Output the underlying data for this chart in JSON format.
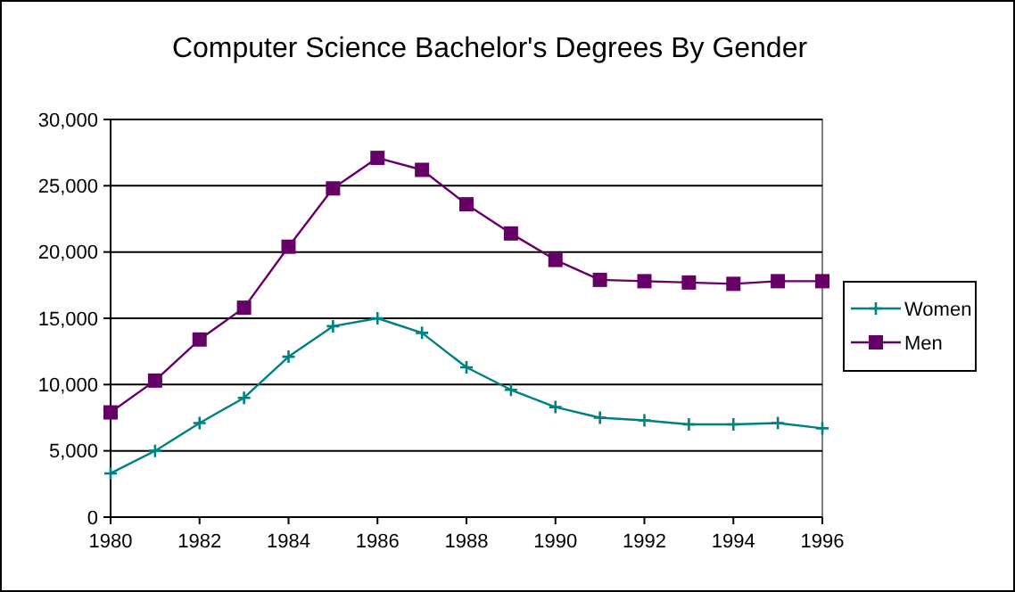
{
  "chart_data": {
    "type": "line",
    "title": "Computer Science Bachelor's Degrees By Gender",
    "x": [
      1980,
      1981,
      1982,
      1983,
      1984,
      1985,
      1986,
      1987,
      1988,
      1989,
      1990,
      1991,
      1992,
      1993,
      1994,
      1995,
      1996
    ],
    "xlim": [
      1980,
      1996
    ],
    "xticks": [
      1980,
      1982,
      1984,
      1986,
      1988,
      1990,
      1992,
      1994,
      1996
    ],
    "ylim": [
      0,
      30000
    ],
    "yticks": [
      {
        "value": 0,
        "label": "0"
      },
      {
        "value": 5000,
        "label": "5,000"
      },
      {
        "value": 10000,
        "label": "10,000"
      },
      {
        "value": 15000,
        "label": "15,000"
      },
      {
        "value": 20000,
        "label": "20,000"
      },
      {
        "value": 25000,
        "label": "25,000"
      },
      {
        "value": 30000,
        "label": "30,000"
      }
    ],
    "grid": "y",
    "legend": "right",
    "series": [
      {
        "name": "Women",
        "color": "#008080",
        "marker": "cross",
        "values": [
          3300,
          5000,
          7100,
          9000,
          12100,
          14400,
          15000,
          13900,
          11300,
          9600,
          8300,
          7500,
          7300,
          7000,
          7000,
          7100,
          6700
        ]
      },
      {
        "name": "Men",
        "color": "#660066",
        "marker": "square",
        "values": [
          7900,
          10300,
          13400,
          15800,
          20400,
          24800,
          27100,
          26200,
          23600,
          21400,
          19400,
          17900,
          17800,
          17700,
          17600,
          17800,
          17800
        ]
      }
    ]
  }
}
